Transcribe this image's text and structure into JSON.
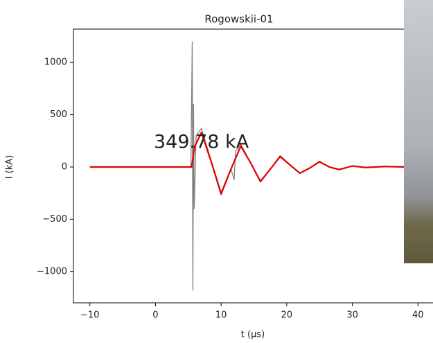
{
  "chart_data": {
    "type": "line",
    "title": "Rogowskii-01",
    "x_label": "t (μs)",
    "y_label": "I (kA)",
    "annotation": "349.78 kA",
    "series": [
      {
        "color": "#808080",
        "x": [
          -10,
          5.4,
          5.6,
          5.7,
          5.8,
          5.9,
          6.2,
          7,
          8.5,
          10,
          11.5,
          12,
          12.2,
          13,
          14.5,
          16,
          17.5,
          19,
          20.5,
          22,
          23.5,
          25,
          26.5,
          28,
          30,
          32,
          35,
          38
        ],
        "values": [
          0,
          0,
          1200,
          -1180,
          600,
          -400,
          300,
          370,
          60,
          -240,
          -20,
          -120,
          150,
          220,
          40,
          -130,
          -20,
          110,
          20,
          -55,
          -10,
          55,
          0,
          -20,
          10,
          -5,
          5,
          0
        ]
      },
      {
        "color": "#e00000",
        "x": [
          -10,
          5.5,
          6,
          7,
          8.5,
          10,
          11.5,
          13,
          14.5,
          16,
          17.5,
          19,
          20.5,
          22,
          23.5,
          25,
          26.5,
          28,
          30,
          32,
          35,
          38
        ],
        "values": [
          0,
          0,
          200,
          330,
          50,
          -260,
          -20,
          200,
          40,
          -140,
          -20,
          100,
          20,
          -60,
          -10,
          50,
          0,
          -25,
          10,
          -5,
          5,
          0
        ]
      }
    ],
    "xlim": [
      -12.5,
      42.5
    ],
    "ylim": [
      -1300,
      1320
    ],
    "xticks": [
      {
        "value": -10,
        "label": "−10"
      },
      0,
      10,
      20,
      30,
      40
    ],
    "yticks": [
      {
        "value": -1000,
        "label": "−1000"
      },
      {
        "value": -500,
        "label": "−500"
      },
      0,
      500,
      1000
    ]
  }
}
